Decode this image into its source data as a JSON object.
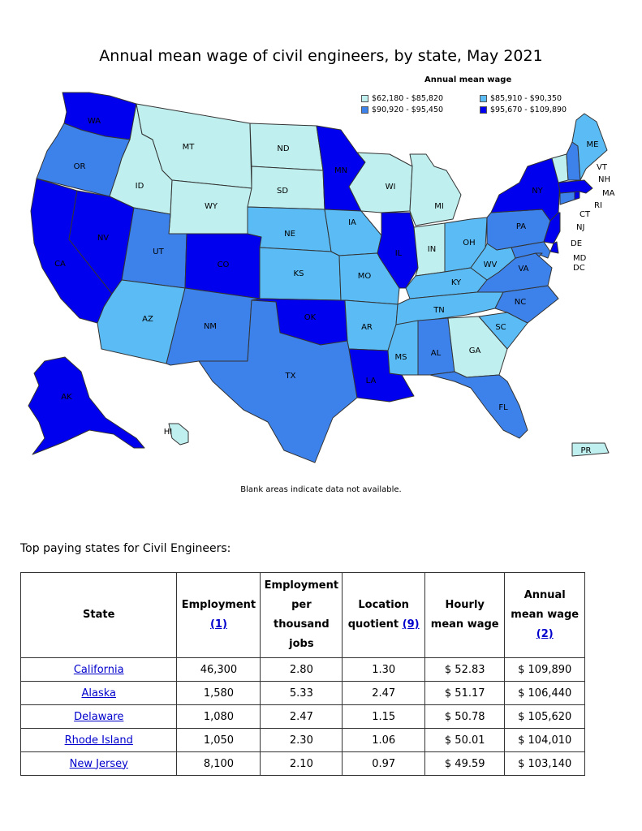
{
  "map": {
    "title": "Annual mean wage of civil engineers, by state, May 2021",
    "legend_title": "Annual mean wage",
    "legend": [
      {
        "range": "$62,180 - $85,820",
        "color": "#bff0ef"
      },
      {
        "range": "$85,910 - $90,350",
        "color": "#5bbcf5"
      },
      {
        "range": "$90,920 - $95,450",
        "color": "#3d82ea"
      },
      {
        "range": "$95,670 - $109,890",
        "color": "#0000ee"
      }
    ],
    "note": "Blank areas indicate data not available.",
    "states": [
      {
        "abbr": "WA",
        "bin": 3
      },
      {
        "abbr": "OR",
        "bin": 2
      },
      {
        "abbr": "CA",
        "bin": 3
      },
      {
        "abbr": "NV",
        "bin": 3
      },
      {
        "abbr": "ID",
        "bin": 0
      },
      {
        "abbr": "MT",
        "bin": 0
      },
      {
        "abbr": "WY",
        "bin": 0
      },
      {
        "abbr": "UT",
        "bin": 2
      },
      {
        "abbr": "AZ",
        "bin": 1
      },
      {
        "abbr": "CO",
        "bin": 3
      },
      {
        "abbr": "NM",
        "bin": 2
      },
      {
        "abbr": "ND",
        "bin": 0
      },
      {
        "abbr": "SD",
        "bin": 0
      },
      {
        "abbr": "NE",
        "bin": 1
      },
      {
        "abbr": "KS",
        "bin": 1
      },
      {
        "abbr": "OK",
        "bin": 3
      },
      {
        "abbr": "TX",
        "bin": 2
      },
      {
        "abbr": "MN",
        "bin": 3
      },
      {
        "abbr": "IA",
        "bin": 1
      },
      {
        "abbr": "MO",
        "bin": 1
      },
      {
        "abbr": "AR",
        "bin": 1
      },
      {
        "abbr": "LA",
        "bin": 3
      },
      {
        "abbr": "WI",
        "bin": 0
      },
      {
        "abbr": "IL",
        "bin": 3
      },
      {
        "abbr": "MI",
        "bin": 0
      },
      {
        "abbr": "IN",
        "bin": 0
      },
      {
        "abbr": "OH",
        "bin": 1
      },
      {
        "abbr": "KY",
        "bin": 1
      },
      {
        "abbr": "TN",
        "bin": 1
      },
      {
        "abbr": "MS",
        "bin": 1
      },
      {
        "abbr": "AL",
        "bin": 2
      },
      {
        "abbr": "GA",
        "bin": 0
      },
      {
        "abbr": "FL",
        "bin": 2
      },
      {
        "abbr": "SC",
        "bin": 1
      },
      {
        "abbr": "NC",
        "bin": 2
      },
      {
        "abbr": "VA",
        "bin": 2
      },
      {
        "abbr": "WV",
        "bin": 1
      },
      {
        "abbr": "PA",
        "bin": 2
      },
      {
        "abbr": "NY",
        "bin": 3
      },
      {
        "abbr": "NJ",
        "bin": 3
      },
      {
        "abbr": "DE",
        "bin": 3
      },
      {
        "abbr": "MD",
        "bin": 2
      },
      {
        "abbr": "DC",
        "bin": 2
      },
      {
        "abbr": "CT",
        "bin": 2
      },
      {
        "abbr": "RI",
        "bin": 3
      },
      {
        "abbr": "MA",
        "bin": 3
      },
      {
        "abbr": "VT",
        "bin": 0
      },
      {
        "abbr": "NH",
        "bin": 2
      },
      {
        "abbr": "ME",
        "bin": 1
      },
      {
        "abbr": "AK",
        "bin": 3
      },
      {
        "abbr": "HI",
        "bin": 0
      },
      {
        "abbr": "PR",
        "bin": 0
      }
    ]
  },
  "table": {
    "caption": "Top paying states for Civil Engineers:",
    "headers": {
      "state": "State",
      "employment": "Employment",
      "employment_ref": "(1)",
      "per_thousand": "Employment per thousand jobs",
      "lq": "Location quotient",
      "lq_ref": "(9)",
      "hourly": "Hourly mean wage",
      "annual": "Annual mean wage",
      "annual_ref": "(2)"
    },
    "rows": [
      {
        "state": "California",
        "employment": "46,300",
        "per_thousand": "2.80",
        "lq": "1.30",
        "hourly": "$ 52.83",
        "annual": "$ 109,890"
      },
      {
        "state": "Alaska",
        "employment": "1,580",
        "per_thousand": "5.33",
        "lq": "2.47",
        "hourly": "$ 51.17",
        "annual": "$ 106,440"
      },
      {
        "state": "Delaware",
        "employment": "1,080",
        "per_thousand": "2.47",
        "lq": "1.15",
        "hourly": "$ 50.78",
        "annual": "$ 105,620"
      },
      {
        "state": "Rhode Island",
        "employment": "1,050",
        "per_thousand": "2.30",
        "lq": "1.06",
        "hourly": "$ 50.01",
        "annual": "$ 104,010"
      },
      {
        "state": "New Jersey",
        "employment": "8,100",
        "per_thousand": "2.10",
        "lq": "0.97",
        "hourly": "$ 49.59",
        "annual": "$ 103,140"
      }
    ]
  }
}
